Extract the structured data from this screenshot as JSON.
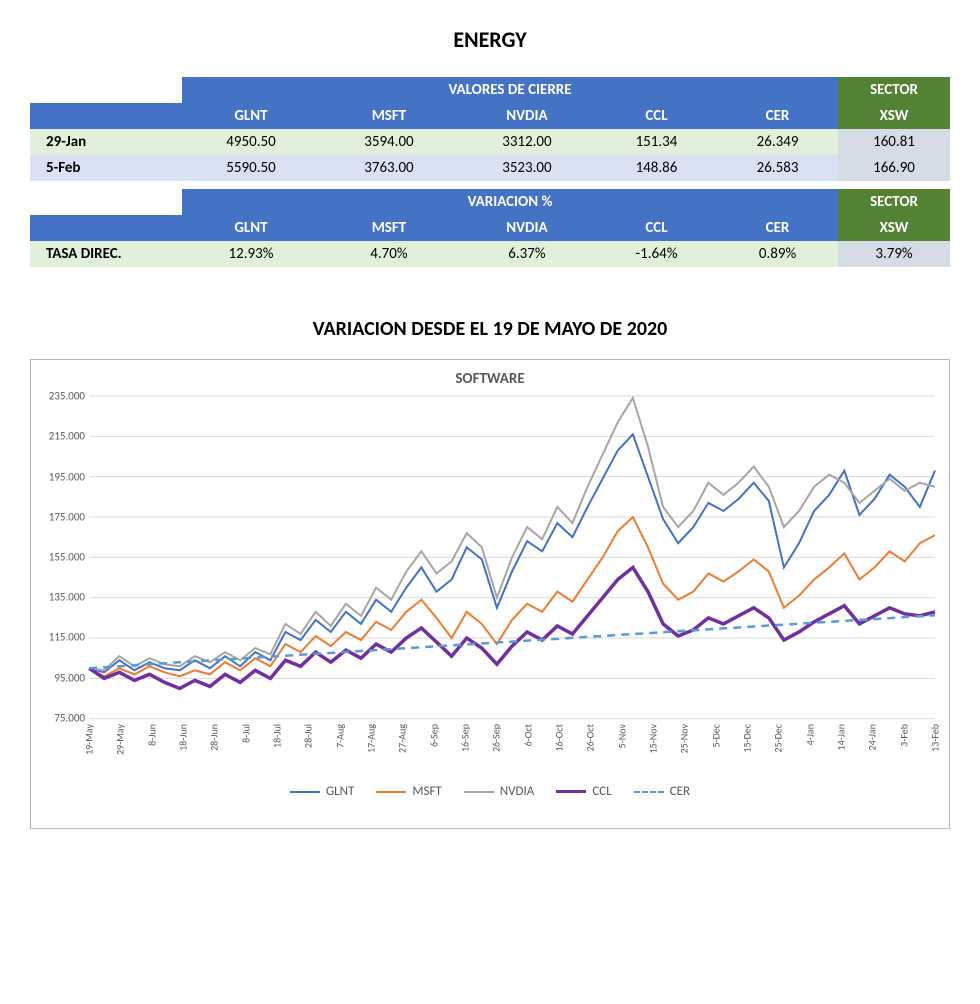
{
  "title_main": "ENERGY",
  "table_closing": {
    "group_header": "VALORES DE CIERRE",
    "sector_header": "SECTOR",
    "columns": [
      "GLNT",
      "MSFT",
      "NVDIA",
      "CCL",
      "CER"
    ],
    "sector_col": "XSW",
    "rows": [
      {
        "label": "29-Jan",
        "cells": [
          "4950.50",
          "3594.00",
          "3312.00",
          "151.34",
          "26.349"
        ],
        "sector": "160.81",
        "band": "lightgreen"
      },
      {
        "label": "5-Feb",
        "cells": [
          "5590.50",
          "3763.00",
          "3523.00",
          "148.86",
          "26.583"
        ],
        "sector": "166.90",
        "band": "lightblue"
      }
    ]
  },
  "table_variation": {
    "group_header": "VARIACION %",
    "sector_header": "SECTOR",
    "columns": [
      "GLNT",
      "MSFT",
      "NVDIA",
      "CCL",
      "CER"
    ],
    "sector_col": "XSW",
    "rows": [
      {
        "label": "TASA DIREC.",
        "cells": [
          "12.93%",
          "4.70%",
          "6.37%",
          "-1.64%",
          "0.89%"
        ],
        "sector": "3.79%",
        "band": "lightgreen"
      }
    ]
  },
  "chart": {
    "title_outer": "VARIACION DESDE EL 19 DE MAYO DE 2020",
    "title_inner": "SOFTWARE",
    "type": "line",
    "background_color": "#ffffff",
    "grid_color": "#d9d9d9",
    "axis_font_size": 11,
    "title_inner_fontsize": 15,
    "ylim": [
      75,
      235
    ],
    "ytick_step": 20,
    "ytick_labels": [
      "75.000",
      "95.000",
      "115.000",
      "135.000",
      "155.000",
      "175.000",
      "195.000",
      "215.000",
      "235.000"
    ],
    "x_labels": [
      "19-May",
      "29-May",
      "8-Jun",
      "18-Jun",
      "28-Jun",
      "8-Jul",
      "18-Jul",
      "28-Jul",
      "7-Aug",
      "17-Aug",
      "27-Aug",
      "6-Sep",
      "16-Sep",
      "26-Sep",
      "6-Oct",
      "16-Oct",
      "26-Oct",
      "5-Nov",
      "15-Nov",
      "25-Nov",
      "5-Dec",
      "15-Dec",
      "25-Dec",
      "4-Jan",
      "14-Jan",
      "24-Jan",
      "3-Feb",
      "13-Feb"
    ],
    "series": [
      {
        "name": "GLNT",
        "color": "#4472c4",
        "width": 2,
        "dash": "none",
        "values": [
          100,
          98,
          104,
          99,
          103,
          100,
          99,
          104,
          100,
          106,
          101,
          108,
          104,
          118,
          114,
          124,
          118,
          128,
          122,
          134,
          128,
          140,
          150,
          138,
          144,
          160,
          154,
          130,
          148,
          163,
          158,
          172,
          165,
          180,
          194,
          208,
          216,
          195,
          174,
          162,
          170,
          182,
          178,
          184,
          192,
          183,
          150,
          162,
          178,
          186,
          198,
          176,
          184,
          196,
          190,
          180,
          198
        ]
      },
      {
        "name": "MSFT",
        "color": "#ed7d31",
        "width": 2,
        "dash": "none",
        "values": [
          100,
          96,
          100,
          97,
          101,
          98,
          96,
          99,
          97,
          103,
          99,
          105,
          101,
          112,
          108,
          116,
          111,
          118,
          114,
          123,
          119,
          128,
          134,
          125,
          115,
          128,
          122,
          112,
          124,
          132,
          128,
          138,
          133,
          144,
          155,
          168,
          175,
          160,
          142,
          134,
          138,
          147,
          143,
          148,
          154,
          148,
          130,
          136,
          144,
          150,
          157,
          144,
          150,
          158,
          153,
          162,
          166
        ]
      },
      {
        "name": "NVDIA",
        "color": "#a6a6a6",
        "width": 2,
        "dash": "none",
        "values": [
          100,
          99,
          106,
          101,
          105,
          102,
          101,
          106,
          103,
          108,
          104,
          110,
          107,
          122,
          117,
          128,
          121,
          132,
          126,
          140,
          134,
          148,
          158,
          147,
          153,
          167,
          160,
          135,
          155,
          170,
          164,
          180,
          172,
          190,
          206,
          222,
          234,
          210,
          180,
          170,
          178,
          192,
          186,
          192,
          200,
          190,
          170,
          178,
          190,
          196,
          192,
          182,
          188,
          194,
          188,
          192,
          190
        ]
      },
      {
        "name": "CCL",
        "color": "#7030a0",
        "width": 3.5,
        "dash": "none",
        "values": [
          100,
          95,
          98,
          94,
          97,
          93,
          90,
          94,
          91,
          97,
          93,
          99,
          95,
          104,
          101,
          108,
          103,
          109,
          105,
          112,
          108,
          115,
          120,
          113,
          106,
          115,
          110,
          102,
          111,
          118,
          114,
          121,
          117,
          126,
          135,
          144,
          150,
          138,
          122,
          116,
          119,
          125,
          122,
          126,
          130,
          125,
          114,
          118,
          123,
          127,
          131,
          122,
          126,
          130,
          127,
          126,
          128
        ]
      },
      {
        "name": "CER",
        "color": "#5b9bd5",
        "width": 2.5,
        "dash": "8,6",
        "values": [
          100,
          100.5,
          101,
          101.5,
          102,
          102.5,
          103,
          103.4,
          103.9,
          104.4,
          104.8,
          105.3,
          105.8,
          106.2,
          106.7,
          107.2,
          107.6,
          108.1,
          108.6,
          109,
          109.5,
          110,
          110.4,
          110.9,
          111.4,
          111.8,
          112.3,
          112.8,
          113.2,
          113.7,
          114.2,
          114.6,
          115.1,
          115.6,
          116,
          116.5,
          117,
          117.4,
          117.9,
          118.4,
          118.8,
          119.3,
          119.8,
          120.2,
          120.7,
          121.2,
          121.6,
          122.1,
          122.6,
          123,
          123.5,
          124,
          124.4,
          124.9,
          125.4,
          125.8,
          126.3
        ]
      }
    ],
    "legend": [
      {
        "label": "GLNT",
        "color": "#4472c4",
        "dash": "none",
        "thick": 2
      },
      {
        "label": "MSFT",
        "color": "#ed7d31",
        "dash": "none",
        "thick": 2
      },
      {
        "label": "NVDIA",
        "color": "#a6a6a6",
        "dash": "none",
        "thick": 2
      },
      {
        "label": "CCL",
        "color": "#7030a0",
        "dash": "none",
        "thick": 3.5
      },
      {
        "label": "CER",
        "color": "#5b9bd5",
        "dash": "dashed",
        "thick": 2
      }
    ]
  }
}
